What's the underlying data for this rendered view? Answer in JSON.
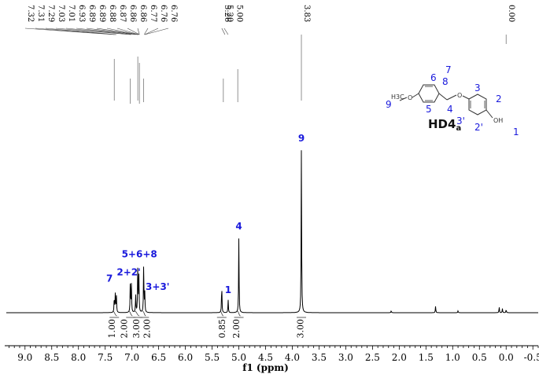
{
  "chart_data": {
    "type": "line",
    "xlabel": "f1 (ppm)",
    "xlim": [
      9.35,
      -0.6
    ],
    "x_reversed": true,
    "xticks": [
      "9.0",
      "8.5",
      "8.0",
      "7.5",
      "7.0",
      "6.5",
      "6.0",
      "5.5",
      "5.0",
      "4.5",
      "4.0",
      "3.5",
      "3.0",
      "2.5",
      "2.0",
      "1.5",
      "1.0",
      "0.5",
      "0.0",
      "-0.5"
    ],
    "peak_labels": [
      "7.32",
      "7.31",
      "7.29",
      "7.03",
      "7.01",
      "6.93",
      "6.89",
      "6.89",
      "6.88",
      "6.87",
      "6.86",
      "6.86",
      "6.77",
      "6.76",
      "6.76",
      "5.20",
      "5.00",
      "3.83",
      "0.00",
      "5.26"
    ],
    "peaks": [
      {
        "ppm": 7.33,
        "height": 0.1
      },
      {
        "ppm": 7.31,
        "height": 0.12
      },
      {
        "ppm": 7.29,
        "height": 0.1
      },
      {
        "ppm": 7.03,
        "height": 0.19
      },
      {
        "ppm": 7.01,
        "height": 0.17
      },
      {
        "ppm": 6.93,
        "height": 0.11
      },
      {
        "ppm": 6.89,
        "height": 0.3
      },
      {
        "ppm": 6.87,
        "height": 0.22
      },
      {
        "ppm": 6.78,
        "height": 0.3
      },
      {
        "ppm": 6.76,
        "height": 0.12
      },
      {
        "ppm": 5.32,
        "height": 0.18
      },
      {
        "ppm": 5.2,
        "height": 0.08
      },
      {
        "ppm": 5.0,
        "height": 0.46
      },
      {
        "ppm": 3.83,
        "height": 1.0
      },
      {
        "ppm": 2.15,
        "height": 0.012
      },
      {
        "ppm": 1.32,
        "height": 0.04
      },
      {
        "ppm": 0.9,
        "height": 0.012
      },
      {
        "ppm": 0.13,
        "height": 0.035
      },
      {
        "ppm": 0.07,
        "height": 0.025
      },
      {
        "ppm": 0.0,
        "height": 0.02
      }
    ],
    "integrals": [
      {
        "ppm": 7.38,
        "value": "1.00"
      },
      {
        "ppm": 7.15,
        "value": "2.00"
      },
      {
        "ppm": 6.92,
        "value": "3.00"
      },
      {
        "ppm": 6.72,
        "value": "2.00"
      },
      {
        "ppm": 5.32,
        "value": "0.85"
      },
      {
        "ppm": 5.05,
        "value": "2.00"
      },
      {
        "ppm": 3.85,
        "value": "3.00"
      }
    ],
    "integral_steps": [
      {
        "from": 7.36,
        "to": 7.28
      },
      {
        "from": 7.06,
        "to": 6.99
      },
      {
        "from": 6.95,
        "to": 6.86
      },
      {
        "from": 6.8,
        "to": 6.74
      },
      {
        "from": 5.35,
        "to": 5.29
      },
      {
        "from": 5.03,
        "to": 4.97
      }
    ],
    "assignments": [
      {
        "ppm": 7.42,
        "text": "7",
        "height": 0.17
      },
      {
        "ppm": 7.06,
        "text": "2+2'",
        "height": 0.21
      },
      {
        "ppm": 6.86,
        "text": "5+6+8",
        "height": 0.32
      },
      {
        "ppm": 6.52,
        "text": "3+3'",
        "height": 0.12
      },
      {
        "ppm": 5.2,
        "text": "1",
        "height": 0.1
      },
      {
        "ppm": 5.0,
        "text": "4",
        "height": 0.49
      },
      {
        "ppm": 3.83,
        "text": "9",
        "height": 1.03
      }
    ]
  },
  "structure": {
    "compound_label": "HD4",
    "compound_sub": "a",
    "methyl_atom": "H3C",
    "oxygen_atom": "O",
    "hydroxyl_atom": "OH",
    "numbers": [
      "9",
      "6",
      "7",
      "8",
      "5",
      "4",
      "3",
      "2",
      "3'",
      "2'",
      "1"
    ]
  }
}
